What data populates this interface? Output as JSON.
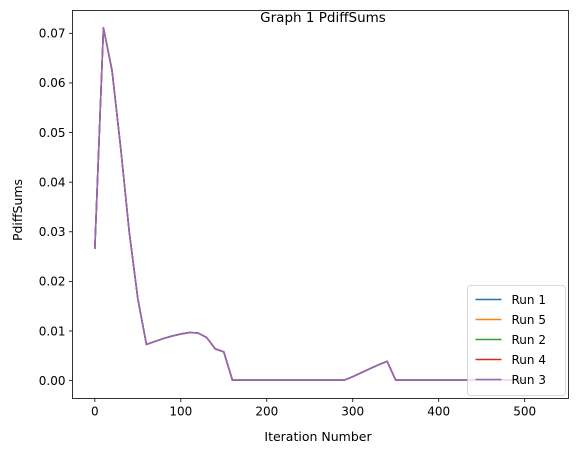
{
  "chart_data": {
    "type": "line",
    "title": "Graph 1 PdiffSums",
    "xlabel": "Iteration Number",
    "ylabel": "PdiffSums",
    "xlim": [
      -26,
      551
    ],
    "ylim": [
      -0.0036,
      0.0746
    ],
    "xticks": [
      0,
      100,
      200,
      300,
      400,
      500
    ],
    "xtick_labels": [
      "0",
      "100",
      "200",
      "300",
      "400",
      "500"
    ],
    "yticks": [
      0.0,
      0.01,
      0.02,
      0.03,
      0.04,
      0.05,
      0.06,
      0.07
    ],
    "ytick_labels": [
      "0.00",
      "0.01",
      "0.02",
      "0.03",
      "0.04",
      "0.05",
      "0.06",
      "0.07"
    ],
    "grid": false,
    "legend_position": "lower-right",
    "x": [
      0,
      10,
      20,
      30,
      40,
      50,
      60,
      70,
      80,
      90,
      100,
      110,
      120,
      130,
      140,
      150,
      160,
      170,
      180,
      190,
      200,
      210,
      220,
      230,
      240,
      250,
      260,
      270,
      280,
      290,
      300,
      310,
      320,
      330,
      340,
      350,
      360,
      370,
      380,
      390,
      400,
      410,
      420,
      430,
      440,
      450,
      460,
      470,
      480,
      490,
      500
    ],
    "series": [
      {
        "name": "Run 1",
        "color": "#1f77b4",
        "values": [
          0.0267,
          0.0711,
          0.0625,
          0.047,
          0.03,
          0.0165,
          0.0073,
          0.0079,
          0.0085,
          0.009,
          0.0094,
          0.0097,
          0.0096,
          0.0087,
          0.0064,
          0.0058,
          0.0001,
          0.0001,
          0.0001,
          0.0001,
          0.0001,
          0.0001,
          0.0001,
          0.0001,
          0.0001,
          0.0001,
          0.0001,
          0.0001,
          0.0001,
          0.0001,
          0.0008,
          0.0016,
          0.0024,
          0.0032,
          0.0039,
          0.0001,
          0.0001,
          0.0001,
          0.0001,
          0.0001,
          0.0001,
          0.0001,
          0.0001,
          0.0001,
          0.0001,
          0.0001,
          0.0001,
          0.0001,
          0.0001,
          0.0001,
          0.0001
        ]
      },
      {
        "name": "Run 5",
        "color": "#ff7f0e",
        "values": [
          0.0267,
          0.0711,
          0.0625,
          0.047,
          0.03,
          0.0165,
          0.0073,
          0.0079,
          0.0085,
          0.009,
          0.0094,
          0.0097,
          0.0096,
          0.0087,
          0.0064,
          0.0058,
          0.0001,
          0.0001,
          0.0001,
          0.0001,
          0.0001,
          0.0001,
          0.0001,
          0.0001,
          0.0001,
          0.0001,
          0.0001,
          0.0001,
          0.0001,
          0.0001,
          0.0008,
          0.0016,
          0.0024,
          0.0032,
          0.0039,
          0.0001,
          0.0001,
          0.0001,
          0.0001,
          0.0001,
          0.0001,
          0.0001,
          0.0001,
          0.0001,
          0.0001,
          0.0001,
          0.0001,
          0.0001,
          0.0001,
          0.0001,
          0.0001
        ]
      },
      {
        "name": "Run 2",
        "color": "#2ca02c",
        "values": [
          0.0267,
          0.0711,
          0.0625,
          0.047,
          0.03,
          0.0165,
          0.0073,
          0.0079,
          0.0085,
          0.009,
          0.0094,
          0.0097,
          0.0096,
          0.0087,
          0.0064,
          0.0058,
          0.0001,
          0.0001,
          0.0001,
          0.0001,
          0.0001,
          0.0001,
          0.0001,
          0.0001,
          0.0001,
          0.0001,
          0.0001,
          0.0001,
          0.0001,
          0.0001,
          0.0008,
          0.0016,
          0.0024,
          0.0032,
          0.0039,
          0.0001,
          0.0001,
          0.0001,
          0.0001,
          0.0001,
          0.0001,
          0.0001,
          0.0001,
          0.0001,
          0.0001,
          0.0001,
          0.0001,
          0.0001,
          0.0001,
          0.0001,
          0.0001
        ]
      },
      {
        "name": "Run 4",
        "color": "#d62728",
        "values": [
          0.0267,
          0.0711,
          0.0625,
          0.047,
          0.03,
          0.0165,
          0.0073,
          0.0079,
          0.0085,
          0.009,
          0.0094,
          0.0097,
          0.0096,
          0.0087,
          0.0064,
          0.0058,
          0.0001,
          0.0001,
          0.0001,
          0.0001,
          0.0001,
          0.0001,
          0.0001,
          0.0001,
          0.0001,
          0.0001,
          0.0001,
          0.0001,
          0.0001,
          0.0001,
          0.0008,
          0.0016,
          0.0024,
          0.0032,
          0.0039,
          0.0001,
          0.0001,
          0.0001,
          0.0001,
          0.0001,
          0.0001,
          0.0001,
          0.0001,
          0.0001,
          0.0001,
          0.0001,
          0.0001,
          0.0001,
          0.0001,
          0.0001,
          0.0001
        ]
      },
      {
        "name": "Run 3",
        "color": "#9467bd",
        "values": [
          0.0267,
          0.0711,
          0.0625,
          0.047,
          0.03,
          0.0165,
          0.0073,
          0.0079,
          0.0085,
          0.009,
          0.0094,
          0.0097,
          0.0096,
          0.0087,
          0.0064,
          0.0058,
          0.0001,
          0.0001,
          0.0001,
          0.0001,
          0.0001,
          0.0001,
          0.0001,
          0.0001,
          0.0001,
          0.0001,
          0.0001,
          0.0001,
          0.0001,
          0.0001,
          0.0008,
          0.0016,
          0.0024,
          0.0032,
          0.0039,
          0.0001,
          0.0001,
          0.0001,
          0.0001,
          0.0001,
          0.0001,
          0.0001,
          0.0001,
          0.0001,
          0.0001,
          0.0001,
          0.0001,
          0.0001,
          0.0001,
          0.0001,
          0.0001
        ]
      }
    ]
  }
}
